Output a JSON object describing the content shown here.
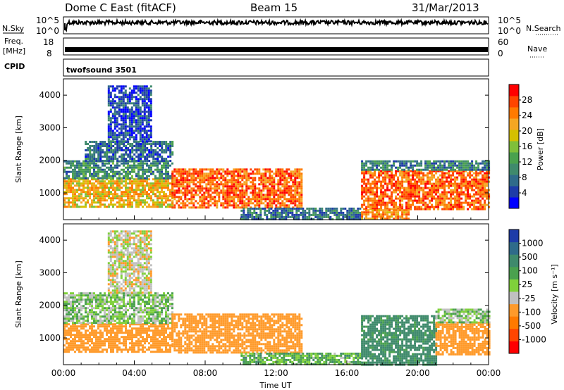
{
  "header": {
    "station": "Dome C East (fitACF)",
    "beam": "Beam 15",
    "date": "31/Mar/2013"
  },
  "panels": {
    "nsky_label": "N.Sky",
    "nsky_top_tick": "10^5",
    "nsky_bottom_tick": "10^0",
    "nsearch_label": "N.Search",
    "nsearch_top_tick": "10^5",
    "nsearch_bottom_tick": "10^0",
    "freq_label": "Freq.",
    "freq_unit": "[MHz]",
    "freq_ticks": [
      "18",
      "8"
    ],
    "nave_label": "Nave",
    "nave_ticks": [
      "60",
      "0"
    ],
    "cpid_label": "CPID",
    "cpid_value": "twofsound 3501"
  },
  "chart_data": [
    {
      "type": "heatmap",
      "name": "Power",
      "xlabel": "",
      "ylabel": "Slant Range [km]",
      "x_ticks": [
        "00:00",
        "04:00",
        "08:00",
        "12:00",
        "16:00",
        "20:00",
        "00:00"
      ],
      "y_ticks": [
        "1000",
        "2000",
        "3000",
        "4000"
      ],
      "x_range_hours": [
        0,
        24
      ],
      "y_range_km": [
        180,
        4500
      ],
      "colorbar": {
        "label": "Power [dB]",
        "ticks": [
          "28",
          "24",
          "20",
          "16",
          "12",
          "8",
          "4"
        ],
        "range": [
          0,
          32
        ],
        "colors": [
          "#0000ff",
          "#1e3ca8",
          "#2f6b8a",
          "#3f8a6c",
          "#4aa14e",
          "#7fbf3a",
          "#d4c000",
          "#f5a623",
          "#ff7a00",
          "#ff4500",
          "#ff0000"
        ]
      },
      "echo_regions": [
        {
          "t_start": 0.0,
          "t_end": 6.1,
          "r_min": 600,
          "r_max": 1450,
          "power_db": 21
        },
        {
          "t_start": 0.0,
          "t_end": 6.1,
          "r_min": 1450,
          "r_max": 2000,
          "power_db": 10
        },
        {
          "t_start": 1.2,
          "t_end": 6.1,
          "r_min": 2000,
          "r_max": 2600,
          "power_db": 7
        },
        {
          "t_start": 2.5,
          "t_end": 5.0,
          "r_min": 2600,
          "r_max": 4300,
          "power_db": 5
        },
        {
          "t_start": 6.1,
          "t_end": 13.5,
          "r_min": 550,
          "r_max": 1750,
          "power_db": 26
        },
        {
          "t_start": 10.0,
          "t_end": 16.8,
          "r_min": 200,
          "r_max": 550,
          "power_db": 8
        },
        {
          "t_start": 16.8,
          "t_end": 24.0,
          "r_min": 500,
          "r_max": 1700,
          "power_db": 26
        },
        {
          "t_start": 16.8,
          "t_end": 24.0,
          "r_min": 1700,
          "r_max": 2000,
          "power_db": 9
        },
        {
          "t_start": 16.8,
          "t_end": 19.5,
          "r_min": 200,
          "r_max": 500,
          "power_db": 24
        }
      ]
    },
    {
      "type": "heatmap",
      "name": "Velocity",
      "xlabel": "Time UT",
      "ylabel": "Slant Range [km]",
      "x_ticks": [
        "00:00",
        "04:00",
        "08:00",
        "12:00",
        "16:00",
        "20:00",
        "00:00"
      ],
      "y_ticks": [
        "1000",
        "2000",
        "3000",
        "4000"
      ],
      "x_range_hours": [
        0,
        24
      ],
      "y_range_km": [
        180,
        4500
      ],
      "colorbar": {
        "label": "Velocity [m s⁻¹]",
        "ticks": [
          "1000",
          "500",
          "100",
          "25",
          "-25",
          "-100",
          "-500",
          "-1000"
        ],
        "levels": [
          1000,
          500,
          100,
          25,
          -25,
          -100,
          -500,
          -1000
        ],
        "colors": [
          "#1e3ca8",
          "#2f6b8a",
          "#3f8a6c",
          "#4aa14e",
          "#7fd03a",
          "#c0c0c0",
          "#ff9a2a",
          "#ff7a00",
          "#ff4500",
          "#ff0000"
        ]
      },
      "echo_regions": [
        {
          "t_start": 0.0,
          "t_end": 6.1,
          "r_min": 600,
          "r_max": 1450,
          "velocity": -200
        },
        {
          "t_start": 0.0,
          "t_end": 6.1,
          "r_min": 1450,
          "r_max": 2400,
          "velocity": 0
        },
        {
          "t_start": 2.5,
          "t_end": 5.0,
          "r_min": 2400,
          "r_max": 4300,
          "velocity": -60
        },
        {
          "t_start": 6.1,
          "t_end": 13.5,
          "r_min": 550,
          "r_max": 1750,
          "velocity": -250
        },
        {
          "t_start": 10.0,
          "t_end": 16.8,
          "r_min": 200,
          "r_max": 550,
          "velocity": 40
        },
        {
          "t_start": 16.8,
          "t_end": 21.0,
          "r_min": 200,
          "r_max": 1700,
          "velocity": 150
        },
        {
          "t_start": 21.0,
          "t_end": 24.0,
          "r_min": 500,
          "r_max": 1500,
          "velocity": -200
        },
        {
          "t_start": 21.0,
          "t_end": 24.0,
          "r_min": 1500,
          "r_max": 1900,
          "velocity": 0
        }
      ]
    }
  ]
}
